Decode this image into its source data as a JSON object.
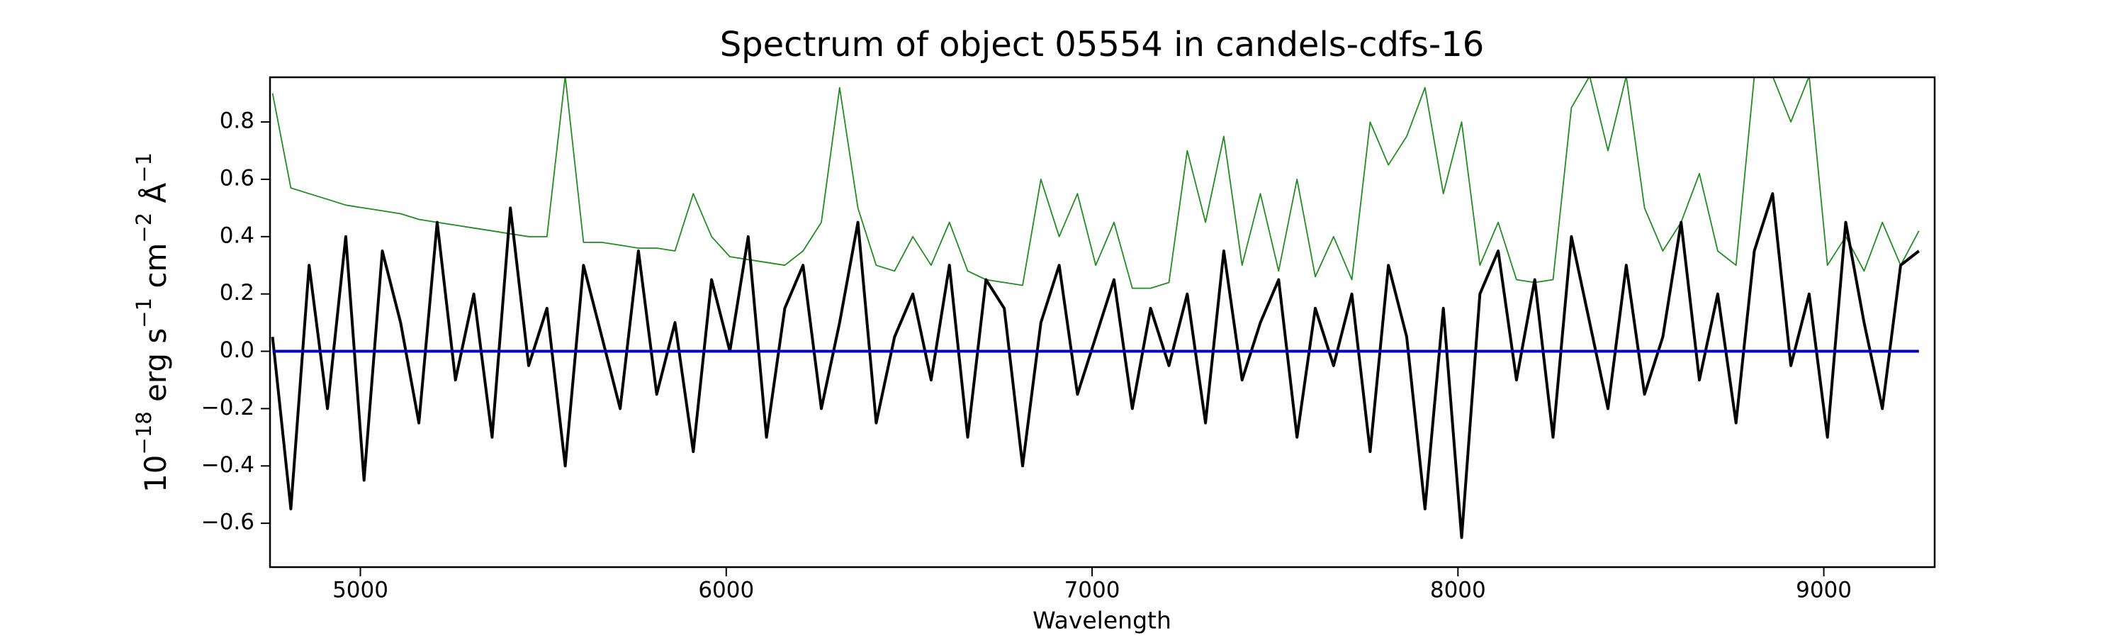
{
  "chart_data": {
    "type": "line",
    "title": "Spectrum of object 05554 in candels-cdfs-16",
    "xlabel": "Wavelength",
    "ylabel": [
      "10",
      "−18",
      " erg s",
      "−1",
      " cm",
      "−2",
      " Å",
      "−1"
    ],
    "xlim": [
      4753,
      9303
    ],
    "ylim": [
      -0.753,
      0.956
    ],
    "xticks": [
      5000,
      6000,
      7000,
      8000,
      9000
    ],
    "yticks": [
      {
        "value": -0.6,
        "label": "−0.6"
      },
      {
        "value": -0.4,
        "label": "−0.4"
      },
      {
        "value": -0.2,
        "label": "−0.2"
      },
      {
        "value": 0,
        "label": "0.0"
      },
      0.2,
      0.4,
      0.6,
      0.8
    ],
    "x": [
      4760,
      4810,
      4860,
      4910,
      4960,
      5010,
      5060,
      5110,
      5160,
      5210,
      5260,
      5310,
      5360,
      5410,
      5460,
      5510,
      5560,
      5610,
      5660,
      5710,
      5760,
      5810,
      5860,
      5910,
      5960,
      6010,
      6060,
      6110,
      6160,
      6210,
      6260,
      6310,
      6360,
      6410,
      6460,
      6510,
      6560,
      6610,
      6660,
      6710,
      6760,
      6810,
      6860,
      6910,
      6960,
      7010,
      7060,
      7110,
      7160,
      7210,
      7260,
      7310,
      7360,
      7410,
      7460,
      7510,
      7560,
      7610,
      7660,
      7710,
      7760,
      7810,
      7860,
      7910,
      7960,
      8010,
      8060,
      8110,
      8160,
      8210,
      8260,
      8310,
      8360,
      8410,
      8460,
      8510,
      8560,
      8610,
      8660,
      8710,
      8760,
      8810,
      8860,
      8910,
      8960,
      9010,
      9060,
      9110,
      9160,
      9210,
      9260
    ],
    "series": [
      {
        "color": "#228b22",
        "width": 1.8,
        "values": [
          0.9,
          0.57,
          0.55,
          0.53,
          0.51,
          0.5,
          0.49,
          0.48,
          0.46,
          0.45,
          0.44,
          0.43,
          0.42,
          0.41,
          0.4,
          0.4,
          0.96,
          0.38,
          0.38,
          0.37,
          0.36,
          0.36,
          0.35,
          0.55,
          0.4,
          0.33,
          0.32,
          0.31,
          0.3,
          0.35,
          0.45,
          0.92,
          0.5,
          0.3,
          0.28,
          0.4,
          0.3,
          0.45,
          0.28,
          0.25,
          0.24,
          0.23,
          0.6,
          0.4,
          0.55,
          0.3,
          0.45,
          0.22,
          0.22,
          0.24,
          0.7,
          0.45,
          0.75,
          0.3,
          0.55,
          0.28,
          0.6,
          0.26,
          0.4,
          0.25,
          0.8,
          0.65,
          0.75,
          0.92,
          0.55,
          0.8,
          0.3,
          0.45,
          0.25,
          0.24,
          0.25,
          0.85,
          0.96,
          0.7,
          0.96,
          0.5,
          0.35,
          0.45,
          0.62,
          0.35,
          0.3,
          0.96,
          0.96,
          0.8,
          0.96,
          0.3,
          0.4,
          0.28,
          0.45,
          0.3,
          0.42
        ]
      },
      {
        "color": "#000000",
        "width": 4,
        "values": [
          0.05,
          -0.55,
          0.3,
          -0.2,
          0.4,
          -0.45,
          0.35,
          0.1,
          -0.25,
          0.45,
          -0.1,
          0.2,
          -0.3,
          0.5,
          -0.05,
          0.15,
          -0.4,
          0.3,
          0.05,
          -0.2,
          0.35,
          -0.15,
          0.1,
          -0.35,
          0.25,
          0.0,
          0.4,
          -0.3,
          0.15,
          0.3,
          -0.2,
          0.1,
          0.45,
          -0.25,
          0.05,
          0.2,
          -0.1,
          0.3,
          -0.3,
          0.25,
          0.15,
          -0.4,
          0.1,
          0.3,
          -0.15,
          0.05,
          0.25,
          -0.2,
          0.15,
          -0.05,
          0.2,
          -0.25,
          0.35,
          -0.1,
          0.1,
          0.25,
          -0.3,
          0.15,
          -0.05,
          0.2,
          -0.35,
          0.3,
          0.05,
          -0.55,
          0.15,
          -0.65,
          0.2,
          0.35,
          -0.1,
          0.25,
          -0.3,
          0.4,
          0.1,
          -0.2,
          0.3,
          -0.15,
          0.05,
          0.45,
          -0.1,
          0.2,
          -0.25,
          0.35,
          0.55,
          -0.05,
          0.2,
          -0.3,
          0.45,
          0.1,
          -0.2,
          0.3,
          0.35
        ]
      },
      {
        "color": "#0000b0",
        "width": 4,
        "values": [
          0,
          0,
          0,
          0,
          0,
          0,
          0,
          0,
          0,
          0,
          0,
          0,
          0,
          0,
          0,
          0,
          0,
          0,
          0,
          0,
          0,
          0,
          0,
          0,
          0,
          0,
          0,
          0,
          0,
          0,
          0,
          0,
          0,
          0,
          0,
          0,
          0,
          0,
          0,
          0,
          0,
          0,
          0,
          0,
          0,
          0,
          0,
          0,
          0,
          0,
          0,
          0,
          0,
          0,
          0,
          0,
          0,
          0,
          0,
          0,
          0,
          0,
          0,
          0,
          0,
          0,
          0,
          0,
          0,
          0,
          0,
          0,
          0,
          0,
          0,
          0,
          0,
          0,
          0,
          0,
          0,
          0,
          0,
          0,
          0,
          0,
          0,
          0,
          0,
          0,
          0
        ]
      }
    ]
  }
}
